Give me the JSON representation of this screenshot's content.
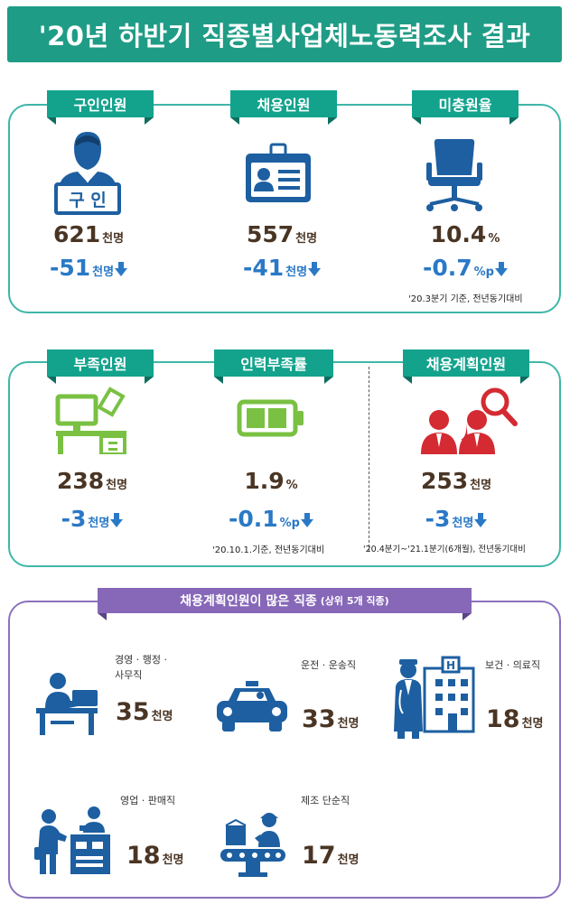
{
  "title": "'20년 하반기 직종별사업체노동력조사 결과",
  "section1": {
    "items": [
      {
        "label": "구인인원",
        "sign": "구 인",
        "value": "621",
        "unit": "천명",
        "change": "-51",
        "change_unit": "천명"
      },
      {
        "label": "채용인원",
        "value": "557",
        "unit": "천명",
        "change": "-41",
        "change_unit": "천명"
      },
      {
        "label": "미충원율",
        "value": "10.4",
        "unit": "%",
        "change": "-0.7",
        "change_unit": "%p",
        "note": "'20.3분기 기준, 전년동기대비"
      }
    ]
  },
  "section2": {
    "items": [
      {
        "label": "부족인원",
        "value": "238",
        "unit": "천명",
        "change": "-3",
        "change_unit": "천명"
      },
      {
        "label": "인력부족률",
        "value": "1.9",
        "unit": "%",
        "change": "-0.1",
        "change_unit": "%p",
        "note": "'20.10.1.기준, 전년동기대비"
      },
      {
        "label": "채용계획인원",
        "value": "253",
        "unit": "천명",
        "change": "-3",
        "change_unit": "천명",
        "note": "'20.4분기~'21.1분기(6개월), 전년동기대비"
      }
    ]
  },
  "section3": {
    "label_main": "채용계획인원이 많은 직종",
    "label_sub": "(상위 5개 직종)",
    "jobs": [
      {
        "name_line1": "경영 · 행정 ·",
        "name_line2": "사무직",
        "value": "35",
        "unit": "천명"
      },
      {
        "name_line1": "운전 · 운송직",
        "value": "33",
        "unit": "천명"
      },
      {
        "name_line1": "보건 · 의료직",
        "value": "18",
        "unit": "천명"
      },
      {
        "name_line1": "영업 · 판매직",
        "value": "18",
        "unit": "천명"
      },
      {
        "name_line1": "제조 단순직",
        "value": "17",
        "unit": "천명"
      }
    ]
  },
  "colors": {
    "title_bg": "#1f9c86",
    "label_teal": "#13a38d",
    "label_purple": "#8667b8",
    "value_brown": "#4a3524",
    "change_blue": "#2a79c6",
    "icon_blue": "#1d5fa0",
    "icon_green": "#7ac143",
    "icon_red": "#d42a32"
  },
  "icons": [
    "person-holding-sign-icon",
    "id-card-icon",
    "office-chair-icon",
    "desk-computer-icon",
    "battery-icon",
    "people-magnifier-icon",
    "office-worker-icon",
    "taxi-icon",
    "doctor-hospital-icon",
    "salesperson-icon",
    "factory-worker-icon"
  ]
}
